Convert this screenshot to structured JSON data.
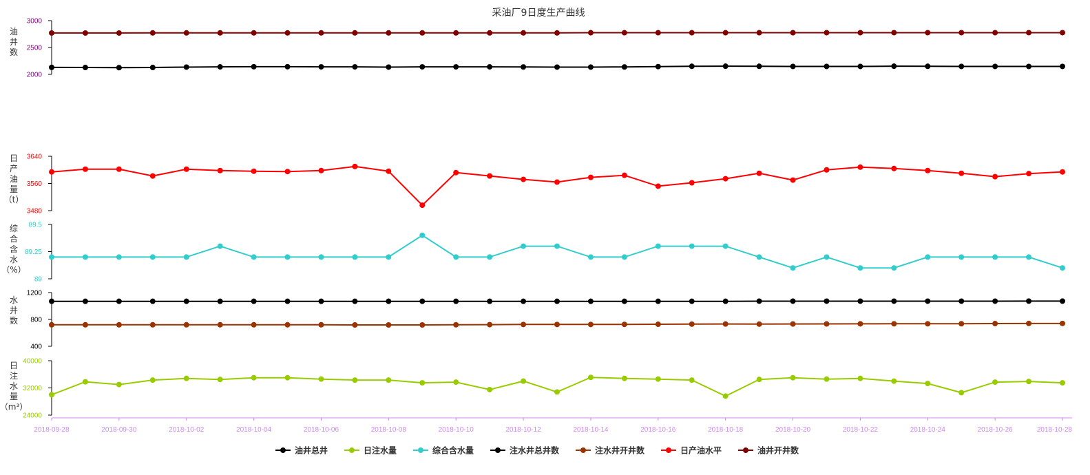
{
  "chart_data": {
    "type": "line",
    "title": "采油厂9日度生产曲线",
    "x": [
      "2018-09-28",
      "2018-09-29",
      "2018-09-30",
      "2018-10-01",
      "2018-10-02",
      "2018-10-03",
      "2018-10-04",
      "2018-10-05",
      "2018-10-06",
      "2018-10-07",
      "2018-10-08",
      "2018-10-09",
      "2018-10-10",
      "2018-10-11",
      "2018-10-12",
      "2018-10-13",
      "2018-10-14",
      "2018-10-15",
      "2018-10-16",
      "2018-10-17",
      "2018-10-18",
      "2018-10-19",
      "2018-10-20",
      "2018-10-21",
      "2018-10-22",
      "2018-10-23",
      "2018-10-24",
      "2018-10-25",
      "2018-10-26",
      "2018-10-27",
      "2018-10-28"
    ],
    "xticks": [
      "2018-09-28",
      "2018-09-30",
      "2018-10-02",
      "2018-10-04",
      "2018-10-06",
      "2018-10-08",
      "2018-10-10",
      "2018-10-12",
      "2018-10-14",
      "2018-10-16",
      "2018-10-18",
      "2018-10-20",
      "2018-10-22",
      "2018-10-24",
      "2018-10-26",
      "2018-10-28"
    ],
    "x_tick_color": "#cc88ee",
    "panels": [
      {
        "id": "oil-wells",
        "ylabel": [
          "油",
          "井",
          "数"
        ],
        "ylabel_color": "#333333",
        "tick_color": "#800080",
        "ylim": [
          2000,
          3000
        ],
        "yticks": [
          "2000",
          "2500",
          "3000"
        ],
        "series_keys": [
          "oil_total",
          "oil_open"
        ]
      },
      {
        "id": "daily-oil",
        "ylabel": [
          "日",
          "产",
          "油",
          "量",
          "（t）"
        ],
        "ylabel_color": "#333333",
        "tick_color": "#ff0000",
        "ylim": [
          3480,
          3640
        ],
        "yticks": [
          "3480",
          "3560",
          "3640"
        ],
        "series_keys": [
          "daily_oil"
        ]
      },
      {
        "id": "water-cut",
        "ylabel": [
          "综",
          "合",
          "含",
          "水",
          "（%）"
        ],
        "ylabel_color": "#333333",
        "tick_color": "#33cccc",
        "ylim": [
          89,
          89.5
        ],
        "yticks": [
          "89",
          "89.25",
          "89.5"
        ],
        "series_keys": [
          "water_cut"
        ]
      },
      {
        "id": "water-wells",
        "ylabel": [
          "水",
          "井",
          "数"
        ],
        "ylabel_color": "#333333",
        "tick_color": "#000000",
        "ylim": [
          400,
          1200
        ],
        "yticks": [
          "400",
          "800",
          "1200"
        ],
        "series_keys": [
          "inj_total",
          "inj_open"
        ]
      },
      {
        "id": "daily-injection",
        "ylabel": [
          "日",
          "注",
          "水",
          "量",
          "（m³）"
        ],
        "ylabel_color": "#333333",
        "tick_color": "#99cc00",
        "ylim": [
          24000,
          40000
        ],
        "yticks": [
          "24000",
          "32000",
          "40000"
        ],
        "series_keys": [
          "daily_inj"
        ]
      }
    ],
    "series": {
      "oil_total": {
        "name": "油井总井",
        "color": "#000000",
        "values": [
          2130,
          2128,
          2125,
          2128,
          2135,
          2140,
          2142,
          2142,
          2140,
          2140,
          2135,
          2140,
          2140,
          2140,
          2138,
          2135,
          2135,
          2138,
          2145,
          2150,
          2152,
          2150,
          2148,
          2148,
          2148,
          2152,
          2150,
          2148,
          2148,
          2148,
          2148
        ]
      },
      "daily_inj": {
        "name": "日注水量",
        "color": "#99cc00",
        "values": [
          30000,
          33800,
          33000,
          34300,
          34800,
          34500,
          35000,
          35000,
          34600,
          34300,
          34300,
          33500,
          33700,
          31500,
          34000,
          30800,
          35100,
          34800,
          34600,
          34300,
          29600,
          34500,
          35000,
          34600,
          34800,
          34000,
          33300,
          30600,
          33700,
          33900,
          33500
        ]
      },
      "water_cut": {
        "name": "综合含水量",
        "color": "#33cccc",
        "values": [
          89.2,
          89.2,
          89.2,
          89.2,
          89.2,
          89.3,
          89.2,
          89.2,
          89.2,
          89.2,
          89.2,
          89.4,
          89.2,
          89.2,
          89.3,
          89.3,
          89.2,
          89.2,
          89.3,
          89.3,
          89.3,
          89.2,
          89.1,
          89.2,
          89.1,
          89.1,
          89.2,
          89.2,
          89.2,
          89.2,
          89.1
        ]
      },
      "inj_total": {
        "name": "注水井总井数",
        "color": "#000000",
        "values": [
          1070,
          1070,
          1070,
          1070,
          1070,
          1070,
          1070,
          1070,
          1070,
          1070,
          1070,
          1070,
          1070,
          1070,
          1070,
          1070,
          1070,
          1070,
          1070,
          1070,
          1070,
          1072,
          1072,
          1072,
          1072,
          1072,
          1072,
          1072,
          1072,
          1073,
          1073
        ]
      },
      "inj_open": {
        "name": "注水井开井数",
        "color": "#993300",
        "values": [
          720,
          720,
          720,
          720,
          720,
          720,
          720,
          720,
          720,
          718,
          718,
          718,
          720,
          722,
          725,
          725,
          725,
          726,
          728,
          730,
          732,
          730,
          732,
          733,
          734,
          735,
          735,
          736,
          738,
          740,
          740
        ]
      },
      "daily_oil": {
        "name": "日产油水平",
        "color": "#ff0000",
        "values": [
          3594,
          3602,
          3602,
          3582,
          3602,
          3598,
          3596,
          3595,
          3598,
          3610,
          3596,
          3496,
          3592,
          3582,
          3572,
          3564,
          3578,
          3584,
          3552,
          3562,
          3574,
          3590,
          3570,
          3600,
          3608,
          3604,
          3598,
          3590,
          3580,
          3589,
          3594
        ]
      },
      "oil_open": {
        "name": "油井开井数",
        "color": "#800000",
        "values": [
          2770,
          2770,
          2770,
          2772,
          2772,
          2772,
          2772,
          2772,
          2772,
          2772,
          2772,
          2772,
          2772,
          2772,
          2772,
          2772,
          2775,
          2775,
          2775,
          2775,
          2775,
          2775,
          2775,
          2776,
          2776,
          2776,
          2776,
          2776,
          2776,
          2776,
          2776
        ]
      }
    },
    "legend_order": [
      "oil_total",
      "daily_inj",
      "water_cut",
      "inj_total",
      "inj_open",
      "daily_oil",
      "oil_open"
    ],
    "legend_position": "bottom-center",
    "grid": false
  }
}
